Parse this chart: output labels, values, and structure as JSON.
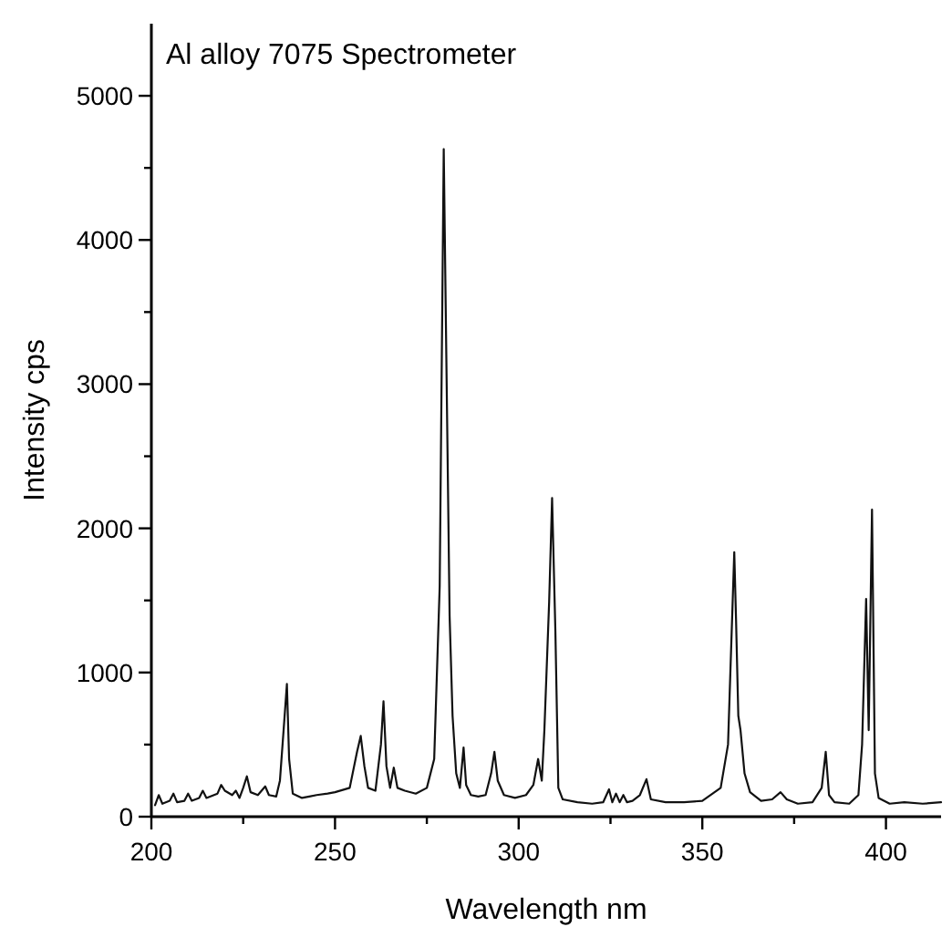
{
  "chart_data": {
    "type": "line",
    "title": "Al alloy 7075 Spectrometer",
    "xlabel": "Wavelength nm",
    "ylabel": "Intensity cps",
    "xlim": [
      200,
      415
    ],
    "ylim": [
      0,
      5500
    ],
    "xticks": [
      200,
      {
        "value": 225,
        "label": null
      },
      250,
      {
        "value": 275,
        "label": null
      },
      300,
      {
        "value": 325,
        "label": null
      },
      350,
      {
        "value": 375,
        "label": null
      },
      400
    ],
    "yticks": [
      0,
      {
        "value": 500,
        "label": null
      },
      1000,
      {
        "value": 1500,
        "label": null
      },
      2000,
      {
        "value": 2500,
        "label": null
      },
      3000,
      {
        "value": 3500,
        "label": null
      },
      4000,
      {
        "value": 4500,
        "label": null
      },
      5000
    ],
    "grid": false,
    "marker": "none",
    "line_style": "solid",
    "series": [
      {
        "color": "#111111",
        "x": [
          201,
          202,
          203,
          205,
          206,
          207,
          209,
          210,
          211,
          213,
          214,
          215,
          218,
          219,
          220,
          222,
          223,
          224,
          225,
          226,
          227,
          229,
          231,
          232,
          234,
          235,
          236,
          236.9,
          237.5,
          238.5,
          241,
          243,
          245,
          248,
          250,
          254,
          256,
          257,
          258,
          259,
          261,
          262.5,
          263.2,
          264,
          265,
          266,
          267,
          269,
          272,
          275,
          277,
          278.5,
          279.6,
          280.3,
          281.2,
          282,
          283,
          284,
          285,
          285.7,
          287,
          289,
          291,
          292.5,
          293.4,
          294.3,
          296,
          299,
          302,
          304,
          305.3,
          306.3,
          307,
          308.3,
          309.1,
          310,
          310.8,
          312,
          316,
          320,
          323,
          324.6,
          325.5,
          326.5,
          327.5,
          328.5,
          329.5,
          331,
          333,
          334.8,
          336,
          340,
          345,
          350,
          355,
          357,
          358.7,
          359.2,
          359.8,
          360.4,
          361.5,
          363,
          366,
          369,
          371.3,
          373,
          376,
          380,
          382.5,
          383.6,
          384.5,
          386,
          390,
          392.5,
          393.5,
          394.6,
          395.3,
          396.2,
          397,
          398,
          401,
          405,
          410,
          415
        ],
        "values": [
          80,
          150,
          90,
          110,
          160,
          100,
          110,
          160,
          110,
          130,
          180,
          130,
          160,
          220,
          180,
          150,
          180,
          130,
          200,
          280,
          170,
          150,
          210,
          150,
          140,
          250,
          600,
          920,
          400,
          160,
          130,
          140,
          150,
          160,
          170,
          200,
          450,
          560,
          350,
          200,
          180,
          500,
          800,
          350,
          200,
          340,
          200,
          180,
          160,
          200,
          400,
          1600,
          4630,
          3200,
          1390,
          700,
          300,
          200,
          480,
          220,
          150,
          140,
          150,
          300,
          450,
          250,
          150,
          130,
          150,
          220,
          400,
          250,
          600,
          1490,
          2210,
          1280,
          200,
          120,
          100,
          90,
          100,
          190,
          100,
          160,
          100,
          150,
          100,
          110,
          150,
          260,
          120,
          100,
          100,
          110,
          200,
          500,
          1835,
          1350,
          700,
          600,
          300,
          170,
          110,
          120,
          170,
          120,
          90,
          100,
          200,
          450,
          150,
          100,
          90,
          150,
          500,
          1510,
          600,
          2130,
          300,
          130,
          90,
          100,
          90,
          100
        ]
      }
    ]
  }
}
